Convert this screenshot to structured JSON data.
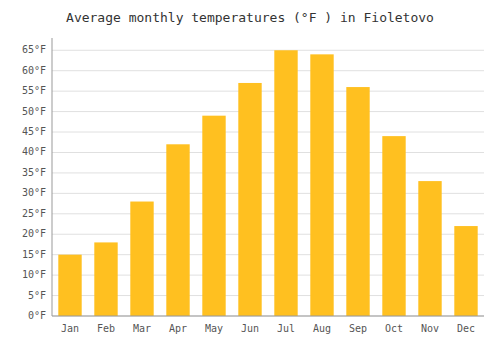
{
  "chart_data": {
    "type": "bar",
    "title": "Average monthly temperatures (°F ) in Fioletovo",
    "categories": [
      "Jan",
      "Feb",
      "Mar",
      "Apr",
      "May",
      "Jun",
      "Jul",
      "Aug",
      "Sep",
      "Oct",
      "Nov",
      "Dec"
    ],
    "values": [
      15,
      18,
      28,
      42,
      49,
      57,
      65,
      64,
      56,
      44,
      33,
      22
    ],
    "color": "#FFC020",
    "ylim": [
      0,
      68
    ],
    "yticks": [
      {
        "value": 0,
        "label": "0°F"
      },
      {
        "value": 5,
        "label": "5°F"
      },
      {
        "value": 10,
        "label": "10°F"
      },
      {
        "value": 15,
        "label": "15°F"
      },
      {
        "value": 20,
        "label": "20°F"
      },
      {
        "value": 25,
        "label": "25°F"
      },
      {
        "value": 30,
        "label": "30°F"
      },
      {
        "value": 35,
        "label": "35°F"
      },
      {
        "value": 40,
        "label": "40°F"
      },
      {
        "value": 45,
        "label": "45°F"
      },
      {
        "value": 50,
        "label": "50°F"
      },
      {
        "value": 55,
        "label": "55°F"
      },
      {
        "value": 60,
        "label": "60°F"
      },
      {
        "value": 65,
        "label": "65°F"
      }
    ],
    "grid": true
  }
}
